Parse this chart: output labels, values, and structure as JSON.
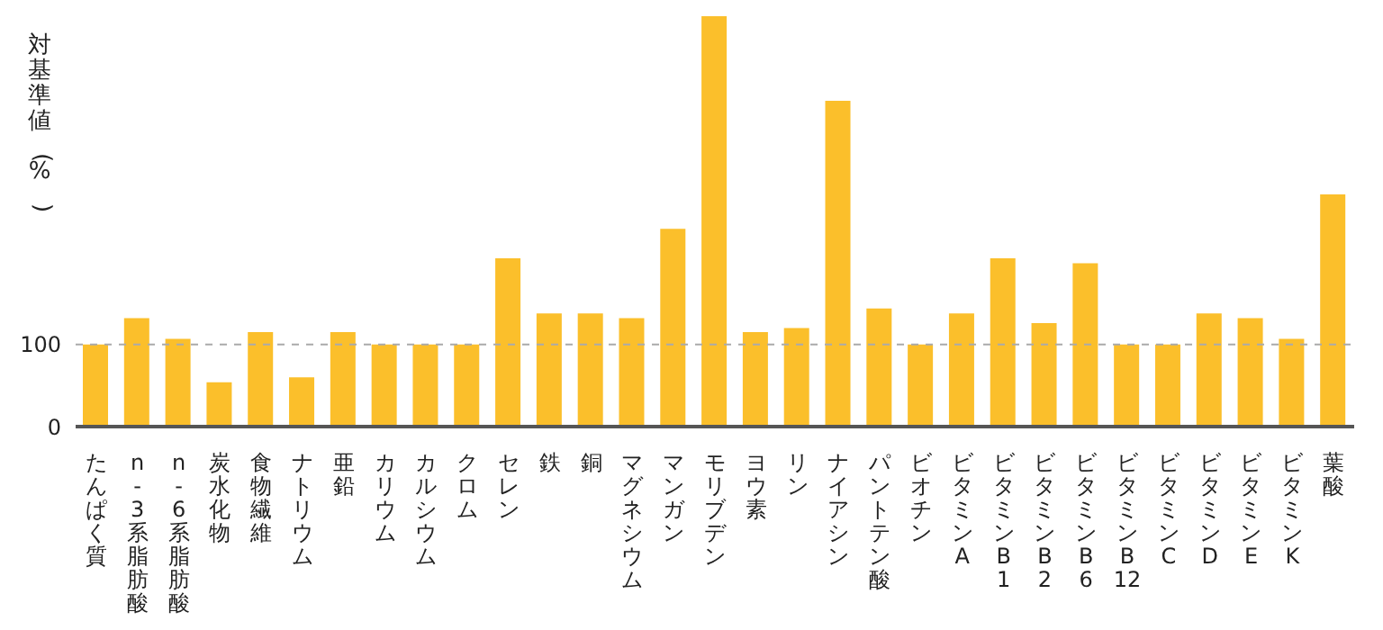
{
  "chart_data": {
    "type": "bar",
    "ylabel": "対基準値(%)",
    "categories": [
      "たんぱく質",
      "n-3系脂肪酸",
      "n-6系脂肪酸",
      "炭水化物",
      "食物繊維",
      "ナトリウム",
      "亜鉛",
      "カリウム",
      "カルシウム",
      "クロム",
      "セレン",
      "鉄",
      "銅",
      "マグネシウム",
      "マンガン",
      "モリブデン",
      "ヨウ素",
      "リン",
      "ナイアシン",
      "パントテン酸",
      "ビオチン",
      "ビタミンA",
      "ビタミンB1",
      "ビタミンB2",
      "ビタミンB6",
      "ビタミンB12",
      "ビタミンC",
      "ビタミンD",
      "ビタミンE",
      "ビタミンK",
      "葉酸"
    ],
    "values": [
      100,
      132,
      107,
      54,
      115,
      60,
      115,
      100,
      100,
      100,
      205,
      138,
      138,
      132,
      241,
      500,
      115,
      120,
      397,
      144,
      100,
      138,
      205,
      126,
      199,
      100,
      100,
      138,
      132,
      107,
      283
    ],
    "color": "#fbbf2b",
    "ylim": [
      0,
      500
    ],
    "yticks": [
      0,
      100
    ],
    "ref_lines": [
      {
        "axis": "y",
        "value": 100,
        "color": "#aaaaaa",
        "line_style": "dashed"
      }
    ],
    "grid": false,
    "legend": false
  }
}
